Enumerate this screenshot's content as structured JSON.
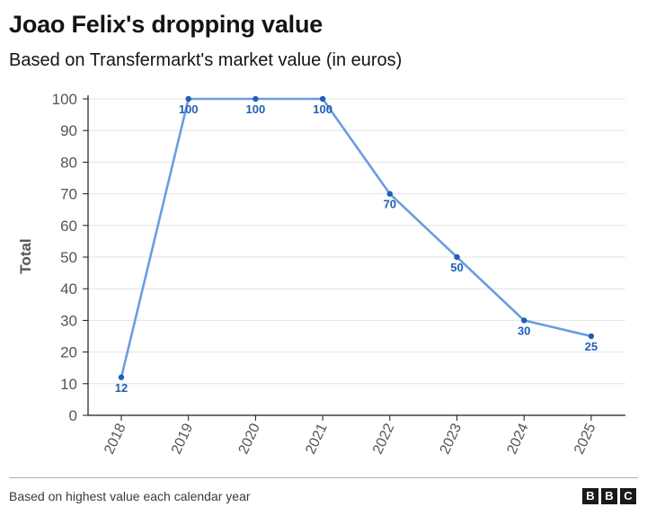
{
  "header": {
    "title": "Joao Felix's dropping value",
    "subtitle": "Based on Transfermarkt's market value (in euros)"
  },
  "footer": {
    "note": "Based on highest value each calendar year",
    "logo": [
      "B",
      "B",
      "C"
    ]
  },
  "colors": {
    "line": "#6a9de0",
    "point": "#1e5fb8",
    "label": "#1e5fb8",
    "grid": "#e3e3e3",
    "axis": "#1a1a1a",
    "tick_text": "#555555"
  },
  "chart_data": {
    "type": "line",
    "title": "Joao Felix's dropping value",
    "subtitle": "Based on Transfermarkt's market value (in euros)",
    "xlabel": "",
    "ylabel": "Total",
    "ylim": [
      0,
      100
    ],
    "yticks": [
      0,
      10,
      20,
      30,
      40,
      50,
      60,
      70,
      80,
      90,
      100
    ],
    "categories": [
      "2018",
      "2019",
      "2020",
      "2021",
      "2022",
      "2023",
      "2024",
      "2025"
    ],
    "values": [
      12,
      100,
      100,
      100,
      70,
      50,
      30,
      25
    ],
    "data_labels": [
      "12",
      "100",
      "100",
      "100",
      "70",
      "50",
      "30",
      "25"
    ],
    "grid": true
  }
}
